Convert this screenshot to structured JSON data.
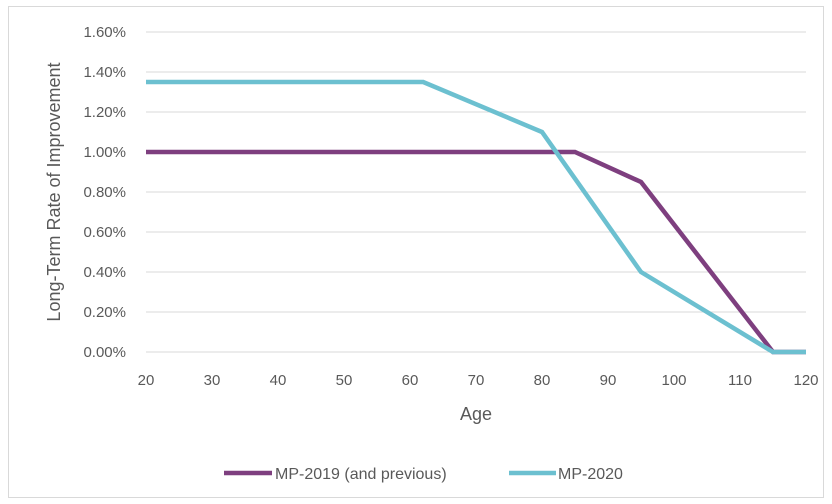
{
  "chart_data": {
    "type": "line",
    "xlabel": "Age",
    "ylabel": "Long-Term Rate of Improvement",
    "xlim": [
      20,
      120
    ],
    "ylim": [
      0,
      1.6
    ],
    "x_ticks": [
      "20",
      "30",
      "40",
      "50",
      "60",
      "70",
      "80",
      "90",
      "100",
      "110",
      "120"
    ],
    "y_ticks": [
      "0.00%",
      "0.20%",
      "0.40%",
      "0.60%",
      "0.80%",
      "1.00%",
      "1.20%",
      "1.40%",
      "1.60%"
    ],
    "grid": "horizontal",
    "legend_position": "bottom",
    "series": [
      {
        "name": "MP-2019 (and previous)",
        "color": "#7e3f7f",
        "x": [
          20,
          85,
          95,
          115,
          120
        ],
        "y": [
          1.0,
          1.0,
          0.85,
          0.0,
          0.0
        ]
      },
      {
        "name": "MP-2020",
        "color": "#6cc0d0",
        "x": [
          20,
          62,
          80,
          95,
          115,
          120
        ],
        "y": [
          1.35,
          1.35,
          1.1,
          0.4,
          0.0,
          0.0
        ]
      }
    ]
  }
}
